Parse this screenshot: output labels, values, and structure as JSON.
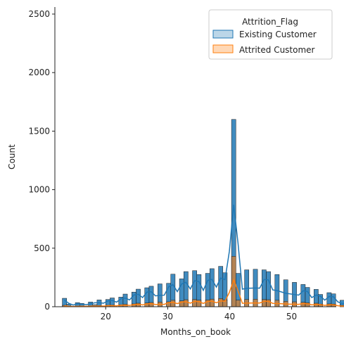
{
  "chart_data": {
    "type": "bar",
    "subtype": "histogram-with-kde",
    "xlabel": "Months_on_book",
    "ylabel": "Count",
    "xlim": [
      11.8,
      57.2
    ],
    "ylim": [
      0,
      2560
    ],
    "xticks": [
      20,
      30,
      40,
      50
    ],
    "yticks": [
      0,
      500,
      1000,
      1500,
      2000,
      2500
    ],
    "bin_width": 0.7,
    "bin_start": 13,
    "grid": false,
    "legend": {
      "title": "Attrition_Flag",
      "placement": "top-right",
      "entries": [
        "Existing Customer",
        "Attrited Customer"
      ]
    },
    "colors": {
      "existing": "#1f77b4",
      "attrited": "#ff7f0e"
    },
    "series": [
      {
        "name": "Existing Customer",
        "values": [
          72,
          22,
          0,
          35,
          28,
          0,
          40,
          18,
          58,
          0,
          62,
          75,
          0,
          82,
          108,
          0,
          125,
          150,
          0,
          162,
          175,
          0,
          195,
          0,
          200,
          278,
          0,
          238,
          300,
          0,
          308,
          275,
          0,
          285,
          325,
          0,
          345,
          290,
          0,
          1600,
          285,
          0,
          315,
          0,
          320,
          0,
          315,
          300,
          0,
          275,
          0,
          230,
          0,
          208,
          0,
          190,
          165,
          0,
          148,
          105,
          0,
          120,
          110,
          0,
          55,
          0,
          65,
          70,
          0,
          48,
          38,
          0,
          82
        ]
      },
      {
        "name": "Attrited Customer",
        "values": [
          12,
          3,
          0,
          5,
          6,
          0,
          8,
          4,
          10,
          0,
          12,
          14,
          0,
          17,
          20,
          0,
          24,
          30,
          0,
          32,
          36,
          0,
          40,
          0,
          42,
          55,
          0,
          50,
          60,
          0,
          62,
          56,
          0,
          58,
          65,
          0,
          70,
          58,
          0,
          430,
          56,
          0,
          62,
          0,
          64,
          0,
          62,
          60,
          0,
          55,
          0,
          46,
          0,
          42,
          0,
          38,
          33,
          0,
          30,
          22,
          0,
          24,
          22,
          0,
          12,
          0,
          14,
          14,
          0,
          10,
          8,
          0,
          18
        ]
      }
    ]
  }
}
